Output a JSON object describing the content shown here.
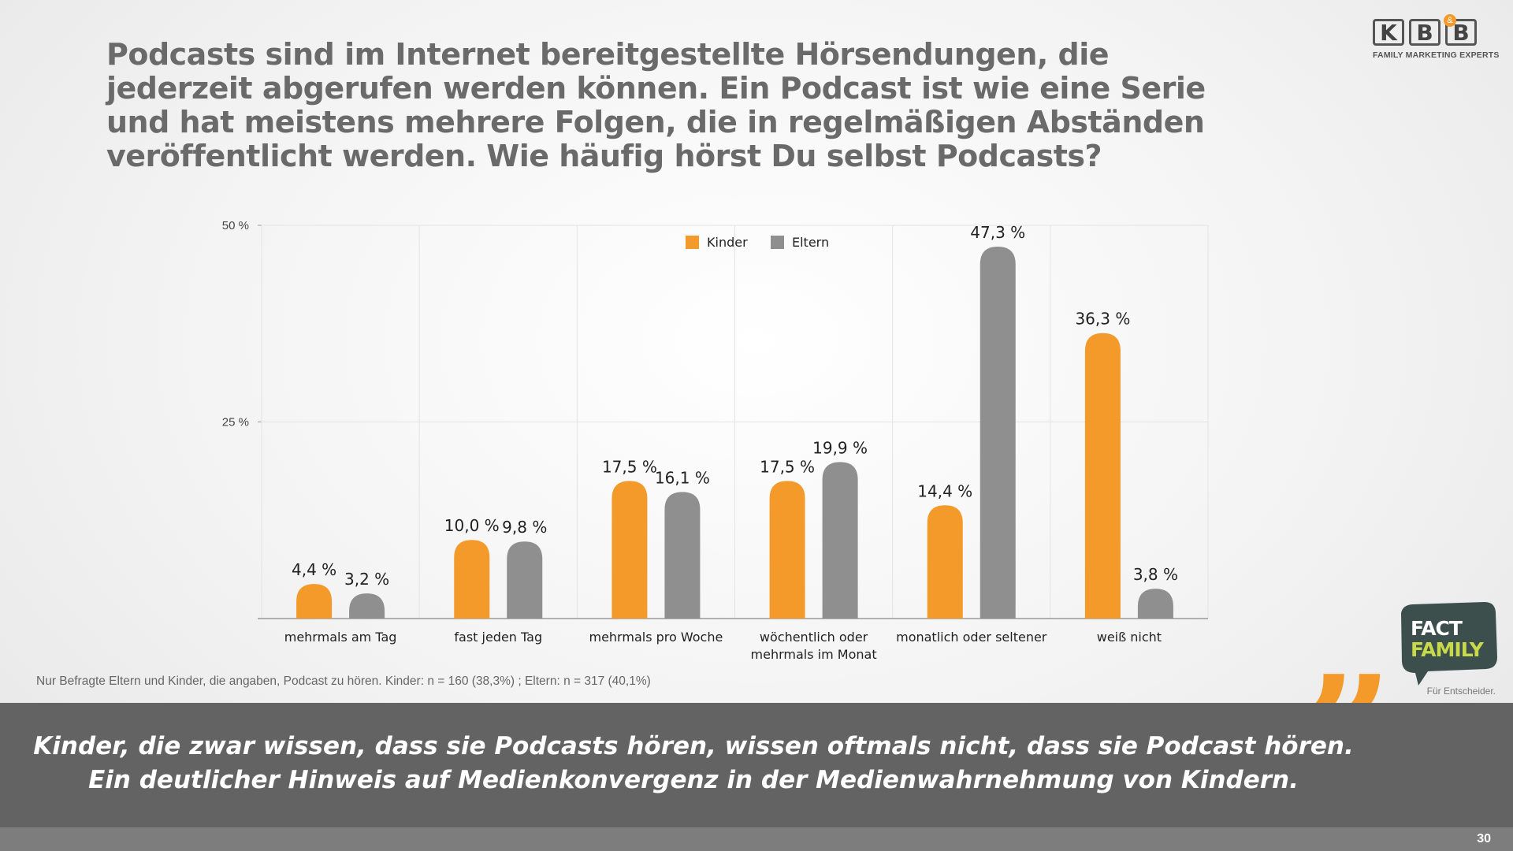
{
  "title": "Podcasts sind im Internet bereitgestellte Hörsendungen, die jederzeit abgerufen werden können. Ein Podcast ist wie eine Serie und hat meistens mehrere Folgen, die in regelmäßigen Abständen veröffentlicht werden. Wie häufig hörst Du selbst Podcasts?",
  "logo": {
    "letters": [
      "K",
      "B",
      "B"
    ],
    "amp": "&",
    "tagline": "FAMILY MARKETING EXPERTS"
  },
  "chart_data": {
    "type": "bar",
    "categories": [
      "mehrmals am Tag",
      "fast jeden Tag",
      "mehrmals pro Woche",
      "wöchentlich oder mehrmals im Monat",
      "monatlich oder seltener",
      "weiß nicht"
    ],
    "series": [
      {
        "name": "Kinder",
        "color": "#f39a2b",
        "values": [
          4.4,
          10.0,
          17.5,
          17.5,
          14.4,
          36.3
        ],
        "labels": [
          "4,4 %",
          "10,0 %",
          "17,5 %",
          "17,5 %",
          "14,4 %",
          "36,3 %"
        ]
      },
      {
        "name": "Eltern",
        "color": "#8f8f8f",
        "values": [
          3.2,
          9.8,
          16.1,
          19.9,
          47.3,
          3.8
        ],
        "labels": [
          "3,2 %",
          "9,8 %",
          "16,1 %",
          "19,9 %",
          "47,3 %",
          "3,8 %"
        ]
      }
    ],
    "yticks": [
      25,
      50
    ],
    "ytick_labels": [
      "25 %",
      "50 %"
    ],
    "ylim": [
      0,
      50
    ],
    "grid": true,
    "legend_position": "top-center"
  },
  "footnote": "Nur Befragte Eltern und Kinder, die angaben, Podcast zu hören. Kinder: n = 160 (38,3%) ; Eltern: n = 317 (40,1%)",
  "quote": {
    "line1": "Kinder, die zwar wissen, dass sie Podcasts hören, wissen oftmals nicht, dass sie Podcast hören.",
    "line2": "Ein deutlicher Hinweis auf Medienkonvergenz in der Medienwahrnehmung von Kindern."
  },
  "badge": {
    "line1": "FACT",
    "line2": "FAMILY",
    "tagline": "Für Entscheider."
  },
  "page_number": "30"
}
